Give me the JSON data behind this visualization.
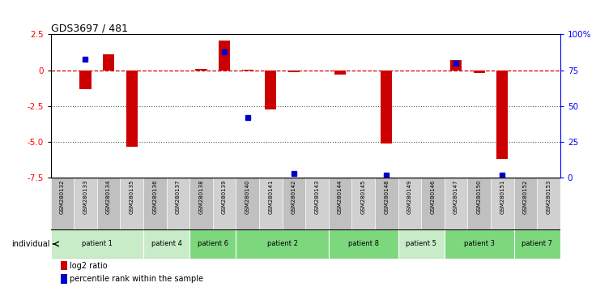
{
  "title": "GDS3697 / 481",
  "samples": [
    "GSM280132",
    "GSM280133",
    "GSM280134",
    "GSM280135",
    "GSM280136",
    "GSM280137",
    "GSM280138",
    "GSM280139",
    "GSM280140",
    "GSM280141",
    "GSM280142",
    "GSM280143",
    "GSM280144",
    "GSM280145",
    "GSM280148",
    "GSM280149",
    "GSM280146",
    "GSM280147",
    "GSM280150",
    "GSM280151",
    "GSM280152",
    "GSM280153"
  ],
  "log2_ratio": [
    0.0,
    -1.3,
    1.1,
    -5.3,
    0.0,
    0.0,
    0.1,
    2.1,
    0.05,
    -2.7,
    -0.1,
    0.0,
    -0.3,
    0.0,
    -5.1,
    0.0,
    0.0,
    0.7,
    -0.2,
    -6.2,
    0.0,
    0.0
  ],
  "percentile_rank": [
    null,
    83,
    null,
    null,
    null,
    null,
    null,
    88,
    42,
    null,
    3,
    null,
    null,
    null,
    2,
    null,
    null,
    80,
    null,
    2,
    null,
    null
  ],
  "patients": [
    {
      "label": "patient 1",
      "start": 0,
      "end": 4,
      "color": "#c8ebc8"
    },
    {
      "label": "patient 4",
      "start": 4,
      "end": 6,
      "color": "#c8ebc8"
    },
    {
      "label": "patient 6",
      "start": 6,
      "end": 8,
      "color": "#7dd87d"
    },
    {
      "label": "patient 2",
      "start": 8,
      "end": 12,
      "color": "#7dd87d"
    },
    {
      "label": "patient 8",
      "start": 12,
      "end": 15,
      "color": "#7dd87d"
    },
    {
      "label": "patient 5",
      "start": 15,
      "end": 17,
      "color": "#c8ebc8"
    },
    {
      "label": "patient 3",
      "start": 17,
      "end": 20,
      "color": "#7dd87d"
    },
    {
      "label": "patient 7",
      "start": 20,
      "end": 22,
      "color": "#7dd87d"
    }
  ],
  "ylim_left": [
    -7.5,
    2.5
  ],
  "ylim_right": [
    0,
    100
  ],
  "yticks_left": [
    2.5,
    0,
    -2.5,
    -5.0,
    -7.5
  ],
  "yticks_right": [
    100,
    75,
    50,
    25,
    0
  ],
  "bar_color": "#cc0000",
  "dot_color": "#0000cc",
  "hline_color": "#cc0000",
  "dotted_color": "#555555",
  "bg_color": "#ffffff",
  "label_bg": "#c8c8c8"
}
